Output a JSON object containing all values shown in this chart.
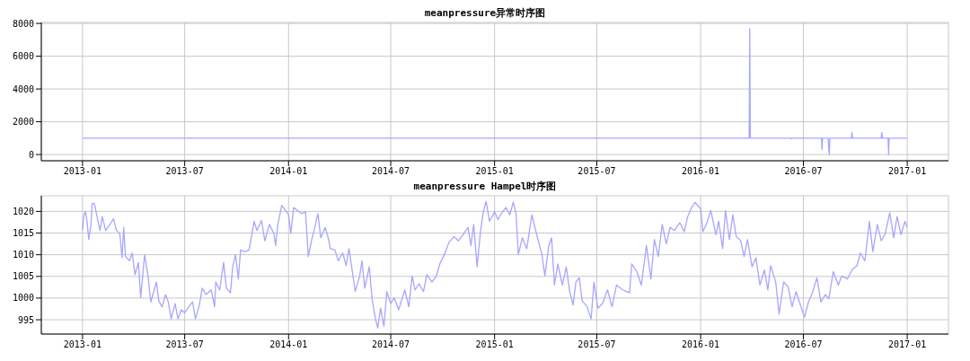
{
  "chart_data": [
    {
      "type": "line",
      "title": "meanpressure异常时序图",
      "xlim": [
        "2012-10-20",
        "2017-03-15"
      ],
      "xticks": [
        "2013-01",
        "2013-07",
        "2014-01",
        "2014-07",
        "2015-01",
        "2015-07",
        "2016-01",
        "2016-07",
        "2017-01"
      ],
      "ylim": [
        -380,
        8060
      ],
      "yticks": [
        0,
        2000,
        4000,
        6000,
        8000
      ],
      "grid": true,
      "series": [
        {
          "color": "#a6a6ff",
          "x": [
            "2013-01-01",
            "2014-01-01",
            "2015-01-01",
            "2016-01-01",
            "2016-03-27",
            "2016-03-28",
            "2016-03-29",
            "2016-06-09",
            "2016-06-10",
            "2016-06-11",
            "2016-08-02",
            "2016-08-03",
            "2016-08-04",
            "2016-08-14",
            "2016-08-15",
            "2016-08-16",
            "2016-08-17",
            "2016-09-24",
            "2016-09-25",
            "2016-09-26",
            "2016-11-16",
            "2016-11-17",
            "2016-11-18",
            "2016-11-28",
            "2016-11-29",
            "2016-11-30",
            "2017-01-01"
          ],
          "values": [
            1000,
            1000,
            1000,
            1000,
            1000,
            7680,
            1000,
            1000,
            950,
            1000,
            1000,
            300,
            1000,
            1000,
            300,
            0,
            1000,
            1000,
            1350,
            1000,
            1000,
            1350,
            1000,
            1000,
            0,
            1000,
            1000
          ]
        }
      ]
    },
    {
      "type": "line",
      "title": "meanpressure Hampel时序图",
      "xlim": [
        "2012-10-20",
        "2017-03-15"
      ],
      "xticks": [
        "2013-01",
        "2013-07",
        "2014-01",
        "2014-07",
        "2015-01",
        "2015-07",
        "2016-01",
        "2016-07",
        "2017-01"
      ],
      "ylim": [
        991.7,
        1023.6
      ],
      "yticks": [
        995,
        1000,
        1005,
        1010,
        1015,
        1020
      ],
      "grid": true,
      "series": [
        {
          "color": "#a6a6ff",
          "x": [
            "2013-01-01",
            "2013-01-03",
            "2013-01-06",
            "2013-01-09",
            "2013-01-12",
            "2013-01-16",
            "2013-01-18",
            "2013-01-22",
            "2013-01-28",
            "2013-02-01",
            "2013-02-05",
            "2013-02-11",
            "2013-02-17",
            "2013-02-25",
            "2013-03-02",
            "2013-03-08",
            "2013-03-12",
            "2013-03-15",
            "2013-03-18",
            "2013-03-25",
            "2013-03-30",
            "2013-04-04",
            "2013-04-10",
            "2013-04-14",
            "2013-04-21",
            "2013-04-27",
            "2013-05-02",
            "2013-05-08",
            "2013-05-12",
            "2013-05-16",
            "2013-05-22",
            "2013-05-28",
            "2013-06-02",
            "2013-06-07",
            "2013-06-14",
            "2013-06-19",
            "2013-06-25",
            "2013-07-01",
            "2013-07-08",
            "2013-07-15",
            "2013-07-20",
            "2013-07-27",
            "2013-08-01",
            "2013-08-08",
            "2013-08-17",
            "2013-08-23",
            "2013-08-25",
            "2013-09-01",
            "2013-09-08",
            "2013-09-13",
            "2013-09-20",
            "2013-09-24",
            "2013-09-29",
            "2013-10-04",
            "2013-10-08",
            "2013-10-15",
            "2013-10-23",
            "2013-11-01",
            "2013-11-06",
            "2013-11-14",
            "2013-11-20",
            "2013-11-28",
            "2013-12-06",
            "2013-12-09",
            "2013-12-13",
            "2013-12-20",
            "2014-01-01",
            "2014-01-05",
            "2014-01-10",
            "2014-01-17",
            "2014-01-24",
            "2014-01-31",
            "2014-02-05",
            "2014-02-11",
            "2014-02-16",
            "2014-02-22",
            "2014-02-27",
            "2014-03-07",
            "2014-03-13",
            "2014-03-16",
            "2014-03-24",
            "2014-03-30",
            "2014-04-07",
            "2014-04-13",
            "2014-04-18",
            "2014-04-24",
            "2014-04-29",
            "2014-05-07",
            "2014-05-11",
            "2014-05-16",
            "2014-05-24",
            "2014-05-29",
            "2014-06-04",
            "2014-06-08",
            "2014-06-13",
            "2014-06-19",
            "2014-06-24",
            "2014-07-01",
            "2014-07-07",
            "2014-07-15",
            "2014-07-26",
            "2014-08-02",
            "2014-08-08",
            "2014-08-13",
            "2014-08-20",
            "2014-08-28",
            "2014-09-03",
            "2014-09-12",
            "2014-09-20",
            "2014-09-26",
            "2014-10-04",
            "2014-10-12",
            "2014-10-21",
            "2014-10-29",
            "2014-11-06",
            "2014-11-15",
            "2014-11-20",
            "2014-11-25",
            "2014-12-01",
            "2014-12-07",
            "2014-12-12",
            "2014-12-17",
            "2014-12-23",
            "2015-01-01",
            "2015-01-07",
            "2015-01-13",
            "2015-01-21",
            "2015-01-28",
            "2015-02-03",
            "2015-02-08",
            "2015-02-12",
            "2015-02-19",
            "2015-02-27",
            "2015-03-08",
            "2015-03-16",
            "2015-03-26",
            "2015-03-31",
            "2015-04-07",
            "2015-04-12",
            "2015-04-17",
            "2015-04-23",
            "2015-05-01",
            "2015-05-08",
            "2015-05-14",
            "2015-05-20",
            "2015-05-25",
            "2015-05-31",
            "2015-06-05",
            "2015-06-14",
            "2015-06-21",
            "2015-06-26",
            "2015-07-03",
            "2015-07-11",
            "2015-07-20",
            "2015-07-28",
            "2015-08-05",
            "2015-08-16",
            "2015-08-28",
            "2015-09-01",
            "2015-09-10",
            "2015-09-18",
            "2015-09-27",
            "2015-10-05",
            "2015-10-11",
            "2015-10-18",
            "2015-10-25",
            "2015-11-01",
            "2015-11-08",
            "2015-11-16",
            "2015-11-25",
            "2015-12-03",
            "2015-12-09",
            "2015-12-16",
            "2015-12-22",
            "2016-01-01",
            "2016-01-05",
            "2016-01-11",
            "2016-01-19",
            "2016-01-28",
            "2016-02-02",
            "2016-02-09",
            "2016-02-14",
            "2016-02-21",
            "2016-02-27",
            "2016-03-04",
            "2016-03-12",
            "2016-03-18",
            "2016-03-24",
            "2016-04-01",
            "2016-04-08",
            "2016-04-15",
            "2016-04-23",
            "2016-04-29",
            "2016-05-04",
            "2016-05-13",
            "2016-05-19",
            "2016-05-27",
            "2016-06-04",
            "2016-06-11",
            "2016-06-18",
            "2016-06-25",
            "2016-07-03",
            "2016-07-10",
            "2016-07-17",
            "2016-07-25",
            "2016-08-01",
            "2016-08-09",
            "2016-08-15",
            "2016-08-23",
            "2016-09-01",
            "2016-09-07",
            "2016-09-17",
            "2016-09-25",
            "2016-10-04",
            "2016-10-10",
            "2016-10-18",
            "2016-10-26",
            "2016-11-01",
            "2016-11-09",
            "2016-11-16",
            "2016-11-23",
            "2016-12-01",
            "2016-12-08",
            "2016-12-14",
            "2016-12-21",
            "2016-12-28",
            "2017-01-01"
          ],
          "values": [
            1015.6,
            1018.8,
            1020,
            1017.7,
            1013.5,
            1017,
            1021.8,
            1021.8,
            1018,
            1015.6,
            1018.8,
            1015.6,
            1016.7,
            1018.3,
            1015.6,
            1014.9,
            1009.3,
            1016.3,
            1009.6,
            1008.6,
            1010.4,
            1005.4,
            1008.2,
            1000.1,
            1010,
            1005.1,
            999.1,
            1001.9,
            1003.7,
            999.4,
            998,
            1000.8,
            999.1,
            995.2,
            998.7,
            995.2,
            997.3,
            996.6,
            998,
            999.1,
            995.2,
            998.4,
            1002.3,
            1000.8,
            1001.9,
            998,
            1003.7,
            1001.9,
            1008.2,
            1002.3,
            1001.2,
            1007.2,
            1010,
            1004.4,
            1011.1,
            1010.7,
            1011.1,
            1017.7,
            1015.6,
            1017.9,
            1013.2,
            1017,
            1014.9,
            1012.1,
            1017,
            1021.4,
            1019.2,
            1014.9,
            1020.9,
            1020.2,
            1019.5,
            1019.9,
            1009.6,
            1013.5,
            1016,
            1019.5,
            1013.9,
            1016.3,
            1013.5,
            1011.4,
            1011.1,
            1008.6,
            1010.4,
            1007.5,
            1011.4,
            1006.1,
            1001.5,
            1005.1,
            1008.6,
            1002.3,
            1007.2,
            999.8,
            995.2,
            993.1,
            997.7,
            993.5,
            1001.5,
            998.7,
            1000.1,
            997.3,
            1001.9,
            998,
            1005.1,
            1001.9,
            1003.3,
            1001.5,
            1005.4,
            1003.7,
            1005.1,
            1007.9,
            1010,
            1012.8,
            1014.2,
            1013.2,
            1014.6,
            1016.3,
            1012.1,
            1017,
            1007.2,
            1015.3,
            1019.9,
            1022.3,
            1017.7,
            1019.9,
            1018.1,
            1019.5,
            1020.9,
            1019.2,
            1022.1,
            1019.5,
            1010,
            1013.9,
            1011.4,
            1019.2,
            1014.9,
            1010,
            1005.1,
            1012.1,
            1013.9,
            1003,
            1007.9,
            1003,
            1007.2,
            1001.5,
            998.4,
            1003.7,
            1004.7,
            999.4,
            998,
            995.2,
            1003.7,
            997.7,
            998.7,
            1001.9,
            998,
            1003,
            1001.9,
            1001.2,
            1007.9,
            1006.1,
            1003,
            1012.1,
            1004.4,
            1013.5,
            1009.6,
            1017,
            1012.5,
            1016.3,
            1015.6,
            1017.4,
            1015.3,
            1018.8,
            1020.9,
            1022.1,
            1020.6,
            1015.3,
            1017,
            1020.2,
            1014.6,
            1017.7,
            1011.4,
            1020.2,
            1013.5,
            1019.2,
            1014.2,
            1013.2,
            1009.6,
            1013.5,
            1007.2,
            1009.3,
            1003,
            1006.5,
            1001.9,
            1007.5,
            1003.7,
            996.3,
            1003.7,
            1002.6,
            998,
            1001.5,
            998.7,
            995.6,
            999.1,
            1001.2,
            1004.7,
            999.1,
            1000.8,
            999.8,
            1006.1,
            1003,
            1005.1,
            1004.4,
            1006.5,
            1007.5,
            1010.4,
            1008.6,
            1017.7,
            1010.7,
            1017,
            1013.2,
            1014.9,
            1019.7,
            1013.9,
            1018.8,
            1014.6,
            1017.7,
            1016.3
          ]
        }
      ]
    }
  ]
}
